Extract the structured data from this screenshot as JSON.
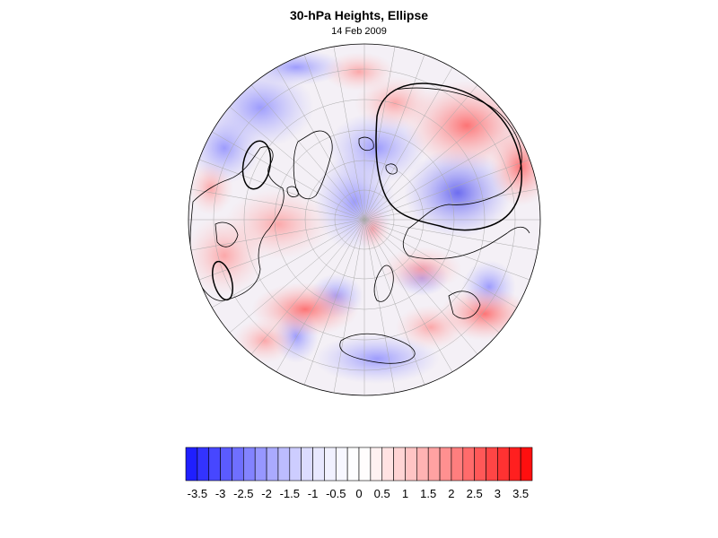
{
  "map": {
    "title": "30-hPa Heights, Ellipse",
    "date": "14 Feb 2009",
    "projection": "north-polar-stereographic",
    "field": "30-hPa height anomaly (shaded), ellipse fit (black contour)"
  },
  "colorbar": {
    "levels": [
      -3.75,
      -3.5,
      -3.25,
      -3,
      -2.75,
      -2.5,
      -2.25,
      -2,
      -1.75,
      -1.5,
      -1.25,
      -1,
      -0.75,
      -0.5,
      -0.25,
      0,
      0.25,
      0.5,
      0.75,
      1,
      1.25,
      1.5,
      1.75,
      2,
      2.25,
      2.5,
      2.75,
      3,
      3.25,
      3.5,
      3.75
    ],
    "colors": [
      "#1f1fff",
      "#3333ff",
      "#4747ff",
      "#5b5bff",
      "#6f6fff",
      "#8383ff",
      "#9797ff",
      "#aaaaff",
      "#bcbcff",
      "#cdcdff",
      "#dcdcff",
      "#e8e8ff",
      "#f1f1ff",
      "#f7f7ff",
      "#fdfdff",
      "#fffdfd",
      "#fff1f1",
      "#ffe3e3",
      "#ffd4d4",
      "#ffc4c4",
      "#ffb3b3",
      "#ffa2a2",
      "#ff9090",
      "#ff7e7e",
      "#ff6b6b",
      "#ff5858",
      "#ff4545",
      "#ff3232",
      "#ff1f1f",
      "#ff0f0f"
    ],
    "tick_labels": [
      "-3.5",
      "-3",
      "-2.5",
      "-2",
      "-1.5",
      "-1",
      "-0.5",
      "0",
      "0.5",
      "1",
      "1.5",
      "2",
      "2.5",
      "3",
      "3.5"
    ]
  }
}
